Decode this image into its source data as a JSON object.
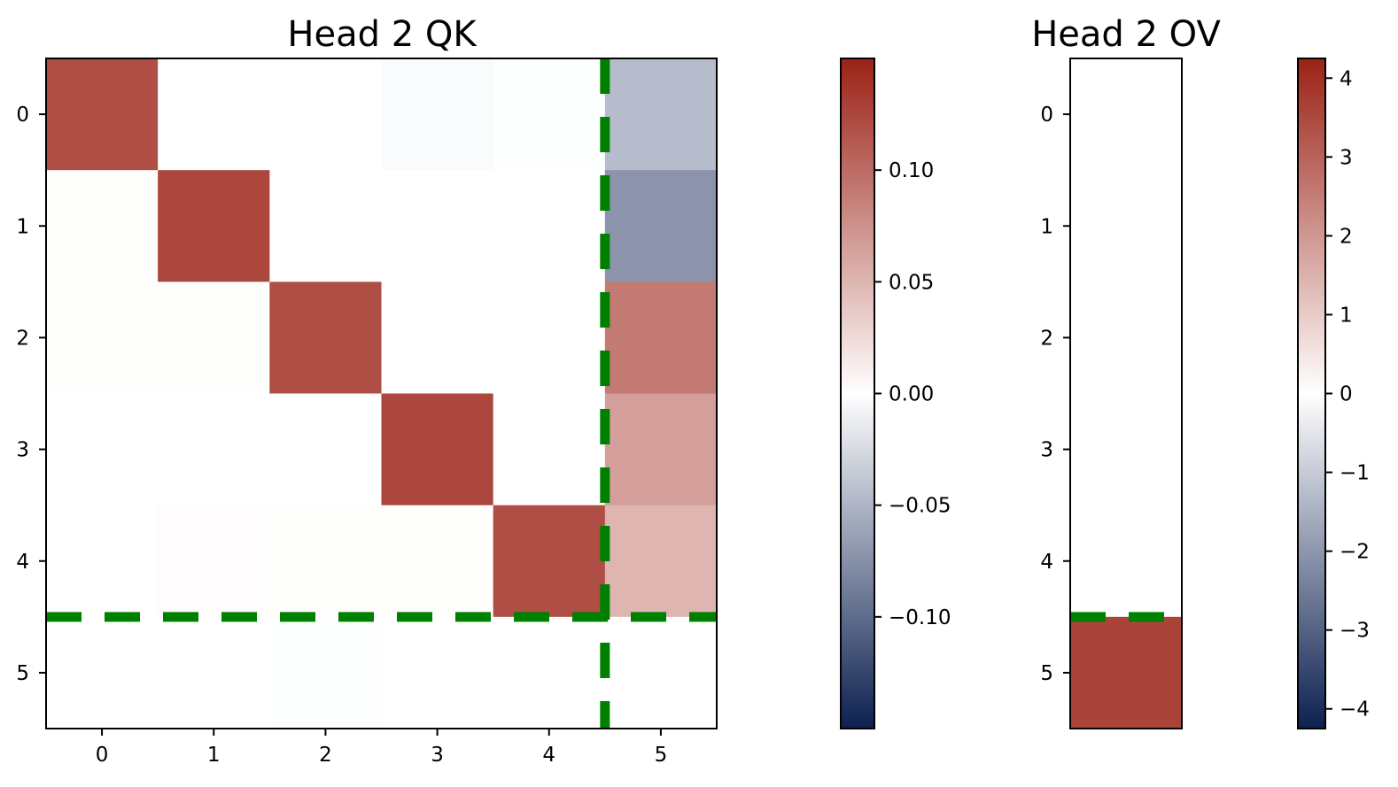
{
  "chart_data": [
    {
      "type": "heatmap",
      "title": "Head 2 QK",
      "x_ticks": [
        "0",
        "1",
        "2",
        "3",
        "4",
        "5"
      ],
      "y_ticks": [
        "0",
        "1",
        "2",
        "3",
        "4",
        "5"
      ],
      "values": [
        [
          0.12,
          0.0,
          0.0,
          -0.003,
          -0.001,
          -0.045
        ],
        [
          0.001,
          0.125,
          0.0,
          0.0,
          0.0,
          -0.072
        ],
        [
          0.001,
          0.001,
          0.12,
          0.0,
          0.0,
          0.09
        ],
        [
          0.0,
          0.0,
          0.0,
          0.125,
          0.0,
          0.065
        ],
        [
          0.0,
          0.002,
          0.001,
          0.001,
          0.12,
          0.05
        ],
        [
          0.0,
          0.0,
          -0.001,
          0.0,
          0.0,
          0.0
        ]
      ],
      "color_range": [
        -0.15,
        0.15
      ],
      "colorbar_ticks": [
        "0.10",
        "0.05",
        "0.00",
        "−0.05",
        "−0.10"
      ],
      "colorbar_tick_values": [
        0.1,
        0.05,
        0.0,
        -0.05,
        -0.1
      ],
      "dashed_lines": {
        "vertical_at_x": 4.5,
        "horizontal_at_y": 4.5,
        "color": "#008000"
      }
    },
    {
      "type": "heatmap",
      "title": "Head 2 OV",
      "x_ticks": [],
      "y_ticks": [
        "0",
        "1",
        "2",
        "3",
        "4",
        "5"
      ],
      "values": [
        [
          0.0
        ],
        [
          0.0
        ],
        [
          0.0
        ],
        [
          0.0
        ],
        [
          0.0
        ],
        [
          3.6
        ]
      ],
      "color_range": [
        -4.25,
        4.25
      ],
      "colorbar_ticks": [
        "4",
        "3",
        "2",
        "1",
        "0",
        "−1",
        "−2",
        "−3",
        "−4"
      ],
      "colorbar_tick_values": [
        4,
        3,
        2,
        1,
        0,
        -1,
        -2,
        -3,
        -4
      ],
      "dashed_lines": {
        "horizontal_at_y": 4.5,
        "color": "#008000"
      }
    }
  ],
  "colormap": {
    "low": "#0d2150",
    "mid": "#ffffff",
    "high": "#9b2216"
  }
}
